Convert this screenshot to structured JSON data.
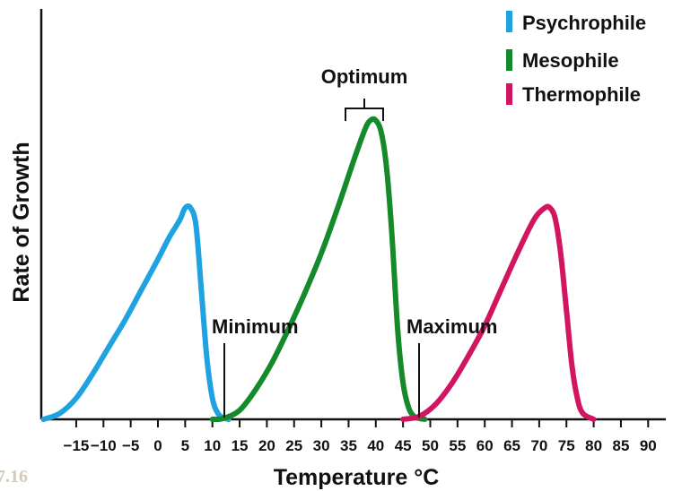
{
  "figure_label": "7.16",
  "chart_data": {
    "type": "line",
    "xlabel": "Temperature °C",
    "ylabel": "Rate of Growth",
    "xlim": [
      -20,
      95
    ],
    "ylim": [
      0,
      1.05
    ],
    "x_ticks": [
      -15,
      -10,
      -5,
      0,
      5,
      10,
      15,
      20,
      25,
      30,
      35,
      40,
      45,
      50,
      55,
      60,
      65,
      70,
      75,
      80,
      85,
      90
    ],
    "x_tick_labels": [
      "−15",
      "−10",
      "−5",
      "0",
      "5",
      "10",
      "15",
      "20",
      "25",
      "30",
      "35",
      "40",
      "45",
      "50",
      "55",
      "60",
      "65",
      "70",
      "75",
      "80",
      "85",
      "90"
    ],
    "y_ticks": "none",
    "grid": false,
    "legend_position": "top-right",
    "series": [
      {
        "name": "Psychrophile",
        "color": "#1fa3e0",
        "x": [
          -21,
          -18,
          -15,
          -12,
          -9,
          -6,
          -3,
          0,
          2,
          4,
          5,
          6,
          7,
          8,
          9,
          10,
          11,
          12,
          13
        ],
        "y": [
          0.0,
          0.02,
          0.07,
          0.15,
          0.24,
          0.33,
          0.43,
          0.53,
          0.6,
          0.66,
          0.7,
          0.7,
          0.64,
          0.42,
          0.2,
          0.07,
          0.02,
          0.005,
          0.0
        ]
      },
      {
        "name": "Mesophile",
        "color": "#148a2b",
        "x": [
          10,
          12,
          15,
          18,
          21,
          24,
          27,
          30,
          33,
          36,
          38,
          39,
          40,
          41,
          42,
          43,
          44,
          45,
          46,
          47,
          48,
          49
        ],
        "y": [
          0.0,
          0.003,
          0.03,
          0.1,
          0.19,
          0.3,
          0.42,
          0.55,
          0.7,
          0.86,
          0.96,
          0.99,
          0.99,
          0.95,
          0.83,
          0.6,
          0.3,
          0.12,
          0.04,
          0.01,
          0.003,
          0.0
        ]
      },
      {
        "name": "Thermophile",
        "color": "#d21560",
        "x": [
          45,
          48,
          51,
          54,
          57,
          60,
          63,
          66,
          69,
          71,
          72,
          73,
          74,
          75,
          76,
          77,
          78,
          80
        ],
        "y": [
          0.0,
          0.01,
          0.05,
          0.12,
          0.21,
          0.31,
          0.43,
          0.55,
          0.66,
          0.7,
          0.7,
          0.66,
          0.54,
          0.36,
          0.18,
          0.07,
          0.02,
          0.0
        ]
      }
    ],
    "annotations": {
      "optimum": {
        "label": "Optimum",
        "x_range": [
          35,
          42
        ],
        "series": "Mesophile"
      },
      "minimum": {
        "label": "Minimum",
        "x": 13,
        "series": "Mesophile"
      },
      "maximum": {
        "label": "Maximum",
        "x": 48,
        "series": "Mesophile"
      }
    }
  }
}
